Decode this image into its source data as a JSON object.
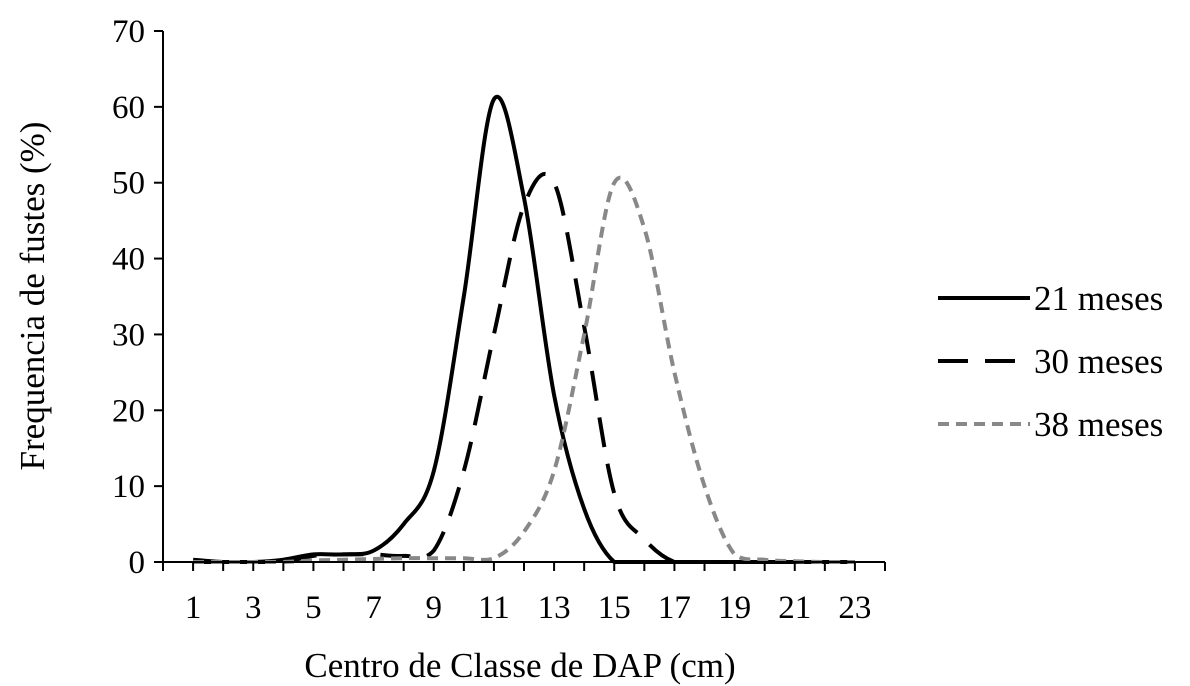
{
  "chart_data": {
    "type": "line",
    "title": "",
    "xlabel": "Centro de Classe de DAP (cm)",
    "ylabel": "Frequencia de fustes (%)",
    "xlim": [
      0,
      24
    ],
    "ylim": [
      0,
      70
    ],
    "xticks": [
      1,
      3,
      5,
      7,
      9,
      11,
      13,
      15,
      17,
      19,
      21,
      23
    ],
    "yticks": [
      0,
      10,
      20,
      30,
      40,
      50,
      60,
      70
    ],
    "grid": false,
    "legend_position": "right",
    "x": [
      1,
      2,
      3,
      4,
      5,
      6,
      7,
      8,
      9,
      10,
      11,
      12,
      13,
      14,
      15,
      16,
      17,
      18,
      19,
      20,
      21,
      22,
      23
    ],
    "series": [
      {
        "name": "21 meses",
        "line_style": "solid",
        "color": "#000000",
        "values": [
          0.3,
          0,
          0,
          0.3,
          1,
          1,
          1.5,
          5,
          12,
          35,
          61,
          48,
          22,
          7,
          0,
          0,
          0,
          0,
          0,
          0,
          0,
          0,
          0
        ]
      },
      {
        "name": "30 meses",
        "line_style": "dashed",
        "color": "#000000",
        "values": [
          0,
          0,
          0,
          0,
          0.8,
          1,
          1,
          0.8,
          1.5,
          12,
          30,
          47,
          50,
          31,
          9,
          3,
          0,
          0,
          0,
          0,
          0,
          0,
          0
        ]
      },
      {
        "name": "38 meses",
        "line_style": "dotted",
        "color": "#888888",
        "values": [
          0,
          0,
          0,
          0,
          0.2,
          0.3,
          0.4,
          0.5,
          0.5,
          0.5,
          0.5,
          4,
          12,
          30,
          50,
          44,
          25,
          10,
          1,
          0.3,
          0.1,
          0,
          0
        ]
      }
    ]
  }
}
